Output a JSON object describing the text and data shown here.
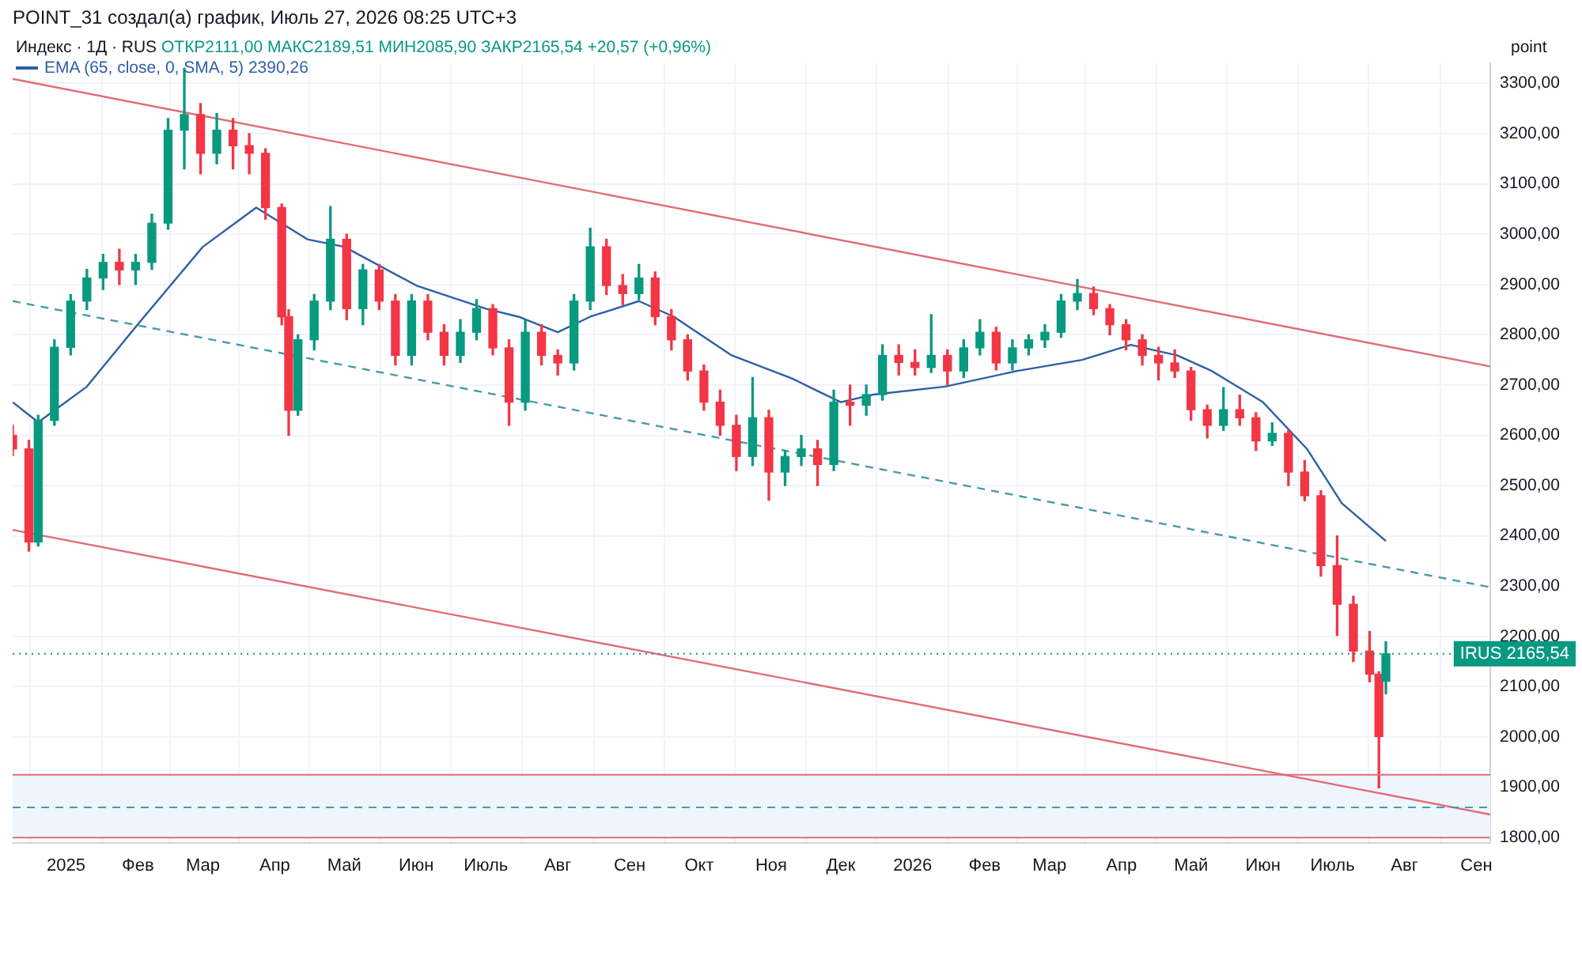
{
  "chart_data": {
    "type": "candlestick",
    "title": "POINT_31 создал(а) график, Июль 27, 2026 08:25 UTC+3",
    "subtitle": "Индекс · 1Д · RUS",
    "ylabel": "point",
    "annotations": [
      "ОТКР2111,00 МАКС2189,51 МИН2085,90 ЗАКР2165,54 +20,57 (+0,96%)",
      "2390,26"
    ],
    "x": [
      "2024-12-09",
      "2024-12-16",
      "2024-12-20",
      "2024-12-27",
      "2025-01-03",
      "2025-01-10",
      "2025-01-17",
      "2025-01-24",
      "2025-01-31",
      "2025-02-07",
      "2025-02-14",
      "2025-02-21",
      "2025-02-28",
      "2025-03-07",
      "2025-03-14",
      "2025-03-21",
      "2025-03-28",
      "2025-04-04",
      "2025-04-07",
      "2025-04-11",
      "2025-04-18",
      "2025-04-25",
      "2025-05-02",
      "2025-05-09",
      "2025-05-16",
      "2025-05-23",
      "2025-05-30",
      "2025-06-06",
      "2025-06-13",
      "2025-06-20",
      "2025-06-27",
      "2025-07-04",
      "2025-07-11",
      "2025-07-18",
      "2025-07-25",
      "2025-08-01",
      "2025-08-08",
      "2025-08-15",
      "2025-08-22",
      "2025-08-29",
      "2025-09-05",
      "2025-09-12",
      "2025-09-19",
      "2025-09-26",
      "2025-10-03",
      "2025-10-10",
      "2025-10-17",
      "2025-10-24",
      "2025-10-31",
      "2025-11-07",
      "2025-11-14",
      "2025-11-21",
      "2025-11-28",
      "2025-12-05",
      "2025-12-12",
      "2025-12-19",
      "2025-12-26",
      "2026-01-02",
      "2026-01-09",
      "2026-01-16",
      "2026-01-23",
      "2026-01-30",
      "2026-02-06",
      "2026-02-13",
      "2026-02-20",
      "2026-02-27",
      "2026-03-06",
      "2026-03-13",
      "2026-03-20",
      "2026-03-27",
      "2026-04-03",
      "2026-04-10",
      "2026-04-17",
      "2026-04-24",
      "2026-05-01",
      "2026-05-08",
      "2026-05-15",
      "2026-05-22",
      "2026-05-29",
      "2026-06-05",
      "2026-06-12",
      "2026-06-19",
      "2026-06-26",
      "2026-07-03",
      "2026-07-10",
      "2026-07-17",
      "2026-07-21",
      "2026-07-24"
    ],
    "ohlc": [
      [
        2600,
        2620,
        2560,
        2573
      ],
      [
        2573,
        2590,
        2370,
        2388
      ],
      [
        2388,
        2640,
        2380,
        2630
      ],
      [
        2630,
        2790,
        2620,
        2775
      ],
      [
        2775,
        2880,
        2760,
        2867
      ],
      [
        2867,
        2930,
        2850,
        2913
      ],
      [
        2913,
        2960,
        2890,
        2944
      ],
      [
        2944,
        2970,
        2900,
        2929
      ],
      [
        2929,
        2960,
        2900,
        2944
      ],
      [
        2944,
        3040,
        2930,
        3022
      ],
      [
        3022,
        3230,
        3010,
        3207
      ],
      [
        3207,
        3330,
        3130,
        3238
      ],
      [
        3238,
        3260,
        3120,
        3161
      ],
      [
        3161,
        3240,
        3140,
        3207
      ],
      [
        3207,
        3230,
        3130,
        3176
      ],
      [
        3176,
        3200,
        3120,
        3161
      ],
      [
        3161,
        3170,
        3030,
        3053
      ],
      [
        3053,
        3060,
        2820,
        2836
      ],
      [
        2836,
        2850,
        2600,
        2650
      ],
      [
        2650,
        2800,
        2640,
        2790
      ],
      [
        2790,
        2880,
        2770,
        2867
      ],
      [
        2867,
        3055,
        2850,
        2990
      ],
      [
        2990,
        3000,
        2830,
        2852
      ],
      [
        2852,
        2940,
        2820,
        2929
      ],
      [
        2929,
        2940,
        2850,
        2867
      ],
      [
        2867,
        2880,
        2740,
        2759
      ],
      [
        2759,
        2880,
        2740,
        2867
      ],
      [
        2867,
        2880,
        2790,
        2805
      ],
      [
        2805,
        2820,
        2740,
        2759
      ],
      [
        2759,
        2830,
        2745,
        2805
      ],
      [
        2805,
        2870,
        2790,
        2852
      ],
      [
        2852,
        2860,
        2760,
        2774
      ],
      [
        2774,
        2790,
        2620,
        2666
      ],
      [
        2666,
        2830,
        2650,
        2805
      ],
      [
        2805,
        2820,
        2740,
        2759
      ],
      [
        2759,
        2770,
        2720,
        2744
      ],
      [
        2744,
        2880,
        2730,
        2867
      ],
      [
        2867,
        3012,
        2850,
        2975
      ],
      [
        2975,
        2990,
        2880,
        2898
      ],
      [
        2898,
        2920,
        2860,
        2882
      ],
      [
        2882,
        2940,
        2870,
        2913
      ],
      [
        2913,
        2925,
        2820,
        2836
      ],
      [
        2836,
        2850,
        2770,
        2790
      ],
      [
        2790,
        2800,
        2710,
        2728
      ],
      [
        2728,
        2740,
        2650,
        2666
      ],
      [
        2666,
        2690,
        2600,
        2620
      ],
      [
        2620,
        2640,
        2530,
        2558
      ],
      [
        2558,
        2715,
        2540,
        2635
      ],
      [
        2635,
        2650,
        2471,
        2527
      ],
      [
        2527,
        2570,
        2500,
        2558
      ],
      [
        2558,
        2600,
        2540,
        2573
      ],
      [
        2573,
        2590,
        2500,
        2542
      ],
      [
        2542,
        2690,
        2530,
        2666
      ],
      [
        2666,
        2700,
        2620,
        2660
      ],
      [
        2660,
        2700,
        2640,
        2681
      ],
      [
        2681,
        2780,
        2670,
        2759
      ],
      [
        2759,
        2780,
        2720,
        2745
      ],
      [
        2745,
        2770,
        2720,
        2735
      ],
      [
        2735,
        2840,
        2725,
        2759
      ],
      [
        2759,
        2770,
        2700,
        2728
      ],
      [
        2728,
        2790,
        2715,
        2774
      ],
      [
        2774,
        2830,
        2760,
        2805
      ],
      [
        2805,
        2815,
        2730,
        2744
      ],
      [
        2744,
        2790,
        2730,
        2774
      ],
      [
        2774,
        2800,
        2760,
        2790
      ],
      [
        2790,
        2820,
        2775,
        2805
      ],
      [
        2805,
        2880,
        2795,
        2867
      ],
      [
        2867,
        2910,
        2850,
        2882
      ],
      [
        2882,
        2895,
        2840,
        2852
      ],
      [
        2852,
        2860,
        2800,
        2820
      ],
      [
        2820,
        2830,
        2770,
        2790
      ],
      [
        2790,
        2800,
        2740,
        2759
      ],
      [
        2759,
        2775,
        2710,
        2744
      ],
      [
        2744,
        2770,
        2715,
        2728
      ],
      [
        2728,
        2735,
        2630,
        2651
      ],
      [
        2651,
        2660,
        2595,
        2620
      ],
      [
        2620,
        2695,
        2610,
        2651
      ],
      [
        2651,
        2680,
        2620,
        2635
      ],
      [
        2635,
        2645,
        2570,
        2589
      ],
      [
        2589,
        2625,
        2580,
        2604
      ],
      [
        2604,
        2610,
        2500,
        2527
      ],
      [
        2527,
        2550,
        2470,
        2480
      ],
      [
        2480,
        2490,
        2320,
        2341
      ],
      [
        2341,
        2400,
        2202,
        2264
      ],
      [
        2264,
        2280,
        2150,
        2171
      ],
      [
        2171,
        2210,
        2110,
        2125
      ],
      [
        2125,
        2130,
        1899,
        2001
      ],
      [
        2111,
        2189.51,
        2085.9,
        2165.54
      ]
    ],
    "series": [
      {
        "type": "line",
        "name": "EMA (65, close, 0, SMA, 5)",
        "color": "#2f5ea8",
        "x": [
          "2024-12-09",
          "2024-12-20",
          "2025-01-10",
          "2025-02-01",
          "2025-03-01",
          "2025-03-24",
          "2025-04-15",
          "2025-05-01",
          "2025-06-01",
          "2025-07-01",
          "2025-07-15",
          "2025-08-01",
          "2025-08-15",
          "2025-09-05",
          "2025-09-20",
          "2025-10-15",
          "2025-11-10",
          "2025-12-01",
          "2025-12-15",
          "2026-01-15",
          "2026-02-15",
          "2026-03-15",
          "2026-04-05",
          "2026-04-25",
          "2026-05-10",
          "2026-06-01",
          "2026-06-20",
          "2026-07-05",
          "2026-07-24"
        ],
        "values": [
          2666,
          2626,
          2697,
          2821,
          2975,
          3053,
          2990,
          2975,
          2898,
          2852,
          2836,
          2805,
          2836,
          2867,
          2836,
          2759,
          2713,
          2666,
          2681,
          2697,
          2728,
          2750,
          2780,
          2759,
          2728,
          2666,
          2573,
          2465,
          2390
        ]
      },
      {
        "type": "line",
        "color": "#e06c78",
        "x": [
          "2024-12-09",
          "2026-09-07"
        ],
        "values": [
          3309,
          2737
        ]
      },
      {
        "type": "line",
        "color": "#4a9aa8",
        "line_style": "dashed",
        "x": [
          "2024-12-09",
          "2026-09-07"
        ],
        "values": [
          2867,
          2298
        ]
      },
      {
        "type": "line",
        "color": "#e06c78",
        "x": [
          "2024-12-09",
          "2026-09-07"
        ],
        "values": [
          2412,
          1846
        ]
      }
    ],
    "xlim": [
      "2024-12-09",
      "2026-09-07"
    ],
    "xticks": [
      {
        "value": "2025-01-01",
        "label": "2025"
      },
      {
        "value": "2025-02-01",
        "label": "Фев"
      },
      {
        "value": "2025-03-01",
        "label": "Мар"
      },
      {
        "value": "2025-04-01",
        "label": "Апр"
      },
      {
        "value": "2025-05-01",
        "label": "Май"
      },
      {
        "value": "2025-06-01",
        "label": "Июн"
      },
      {
        "value": "2025-07-01",
        "label": "Июль"
      },
      {
        "value": "2025-08-01",
        "label": "Авг"
      },
      {
        "value": "2025-09-01",
        "label": "Сен"
      },
      {
        "value": "2025-10-01",
        "label": "Окт"
      },
      {
        "value": "2025-11-01",
        "label": "Ноя"
      },
      {
        "value": "2025-12-01",
        "label": "Дек"
      },
      {
        "value": "2026-01-01",
        "label": "2026"
      },
      {
        "value": "2026-02-01",
        "label": "Фев"
      },
      {
        "value": "2026-03-01",
        "label": "Мар"
      },
      {
        "value": "2026-04-01",
        "label": "Апр"
      },
      {
        "value": "2026-05-01",
        "label": "Май"
      },
      {
        "value": "2026-06-01",
        "label": "Июн"
      },
      {
        "value": "2026-07-01",
        "label": "Июль"
      },
      {
        "value": "2026-08-01",
        "label": "Авг"
      },
      {
        "value": "2026-09-01",
        "label": "Сен"
      }
    ],
    "ylim": [
      1790,
      3340
    ],
    "yticks": [
      {
        "value": 1800,
        "label": "1800,00"
      },
      {
        "value": 1900,
        "label": "1900,00"
      },
      {
        "value": 2000,
        "label": "2000,00"
      },
      {
        "value": 2100,
        "label": "2100,00"
      },
      {
        "value": 2200,
        "label": "2200,00"
      },
      {
        "value": 2300,
        "label": "2300,00"
      },
      {
        "value": 2400,
        "label": "2400,00"
      },
      {
        "value": 2500,
        "label": "2500,00"
      },
      {
        "value": 2600,
        "label": "2600,00"
      },
      {
        "value": 2700,
        "label": "2700,00"
      },
      {
        "value": 2800,
        "label": "2800,00"
      },
      {
        "value": 2900,
        "label": "2900,00"
      },
      {
        "value": 3000,
        "label": "3000,00"
      },
      {
        "value": 3100,
        "label": "3100,00"
      },
      {
        "value": 3200,
        "label": "3200,00"
      },
      {
        "value": 3300,
        "label": "3300,00"
      }
    ],
    "bands": [
      {
        "axis": "y",
        "from": 1800,
        "to": 1925,
        "color": "#eef5fd"
      }
    ],
    "ref_lines": [
      {
        "axis": "y",
        "value": 1925,
        "color": "#e06c78"
      },
      {
        "axis": "y",
        "value": 1800,
        "color": "#e06c78"
      },
      {
        "axis": "y",
        "value": 1860,
        "color": "#4a9aa8",
        "line_style": "dashed"
      },
      {
        "axis": "y",
        "value": 2165.54,
        "color": "#089981",
        "line_style": "dotted",
        "label": "IRUS 2165,54"
      }
    ],
    "grid": true,
    "legend": "top left"
  }
}
